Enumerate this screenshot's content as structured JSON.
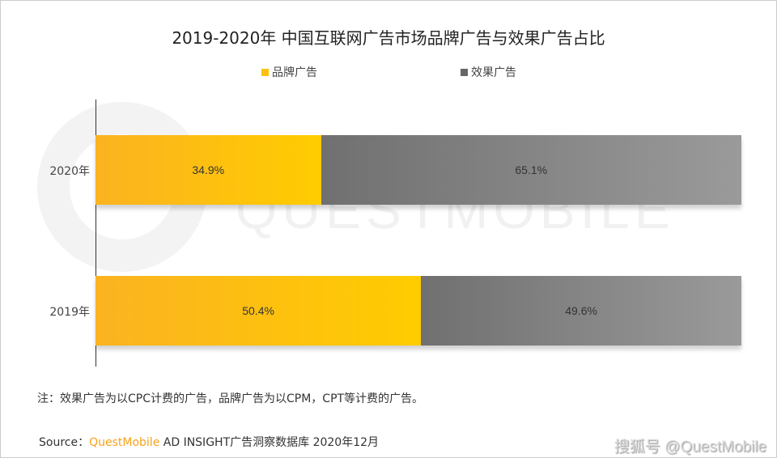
{
  "chart_data": {
    "type": "bar",
    "orientation": "horizontal-stacked-100",
    "title": "2019-2020年 中国互联网广告市场品牌广告与效果广告占比",
    "categories": [
      "2020年",
      "2019年"
    ],
    "series": [
      {
        "name": "品牌广告",
        "color": "#fcc10f",
        "values": [
          34.9,
          50.4
        ],
        "labels": [
          "34.9%",
          "50.4%"
        ]
      },
      {
        "name": "效果广告",
        "color": "#808080",
        "values": [
          65.1,
          49.6
        ],
        "labels": [
          "65.1%",
          "49.6%"
        ]
      }
    ],
    "legend_position": "top",
    "xlim": [
      0,
      100
    ]
  },
  "note": "注：效果广告为以CPC计费的广告，品牌广告为以CPM，CPT等计费的广告。",
  "source": {
    "prefix": "Source：",
    "brand": "QuestMobile",
    "rest": " AD INSIGHT广告洞察数据库 2020年12月"
  },
  "watermark": "QUESTMOBILE",
  "credit": "搜狐号 @QuestMobile"
}
